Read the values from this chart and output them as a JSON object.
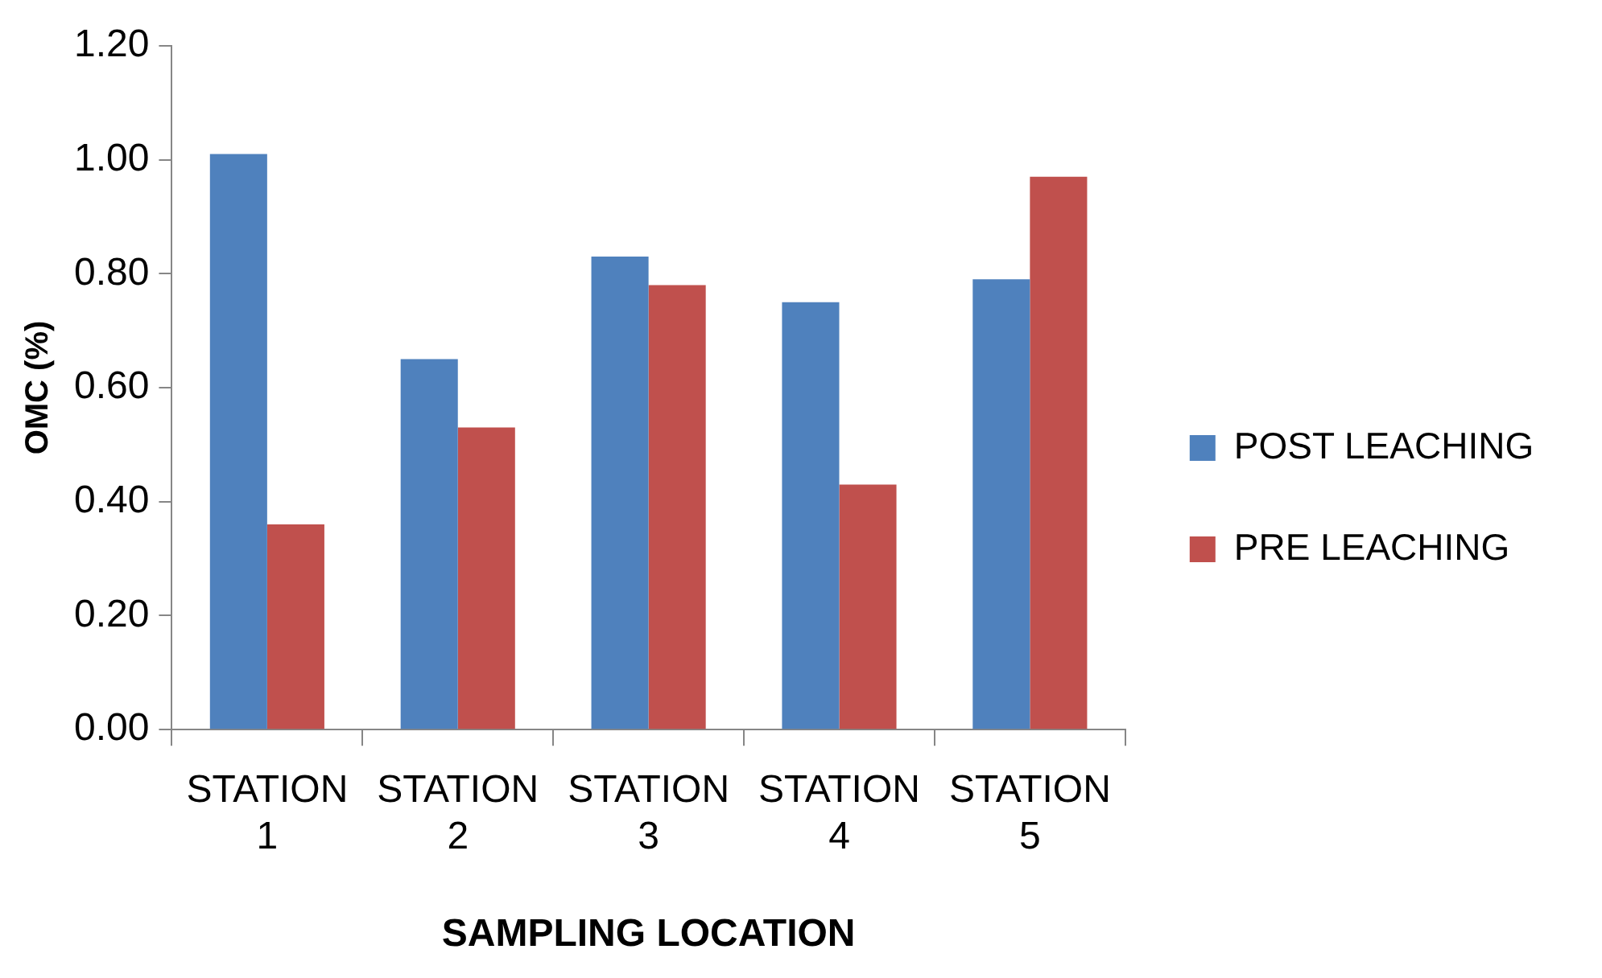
{
  "chart_data": {
    "type": "bar",
    "xlabel": "SAMPLING LOCATION",
    "ylabel": "OMC (%)",
    "categories": [
      "STATION 1",
      "STATION 2",
      "STATION 3",
      "STATION 4",
      "STATION 5"
    ],
    "series": [
      {
        "name": "POST LEACHING",
        "color": "#4f81bd",
        "values": [
          1.01,
          0.65,
          0.83,
          0.75,
          0.79
        ]
      },
      {
        "name": "PRE LEACHING",
        "color": "#c0504d",
        "values": [
          0.36,
          0.53,
          0.78,
          0.43,
          0.97
        ]
      }
    ],
    "ylim": [
      0,
      1.2
    ],
    "yticks": [
      {
        "value": 0,
        "label": "0.00"
      },
      {
        "value": 0.2,
        "label": "0.20"
      },
      {
        "value": 0.4,
        "label": "0.40"
      },
      {
        "value": 0.6,
        "label": "0.60"
      },
      {
        "value": 0.8,
        "label": "0.80"
      },
      {
        "value": 1,
        "label": "1.00"
      },
      {
        "value": 1.2,
        "label": "1.20"
      }
    ],
    "grid": false,
    "legend": "right"
  }
}
